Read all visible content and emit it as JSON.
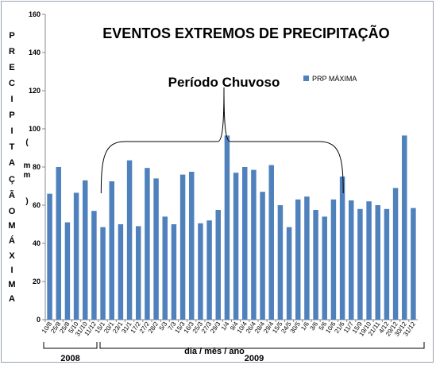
{
  "chart_data": {
    "type": "bar",
    "title": "EVENTOS EXTREMOS DE PRECIPITAÇÃO",
    "ylabel_chars": [
      "P",
      "R",
      "E",
      "C",
      "I",
      "P",
      "I",
      "T",
      "A",
      "Ç",
      "Ã",
      "O",
      "M",
      "Á",
      "X",
      "I",
      "M",
      "A"
    ],
    "ylabel_unit_chars": [
      "(",
      "m",
      "m",
      ")"
    ],
    "xlabel": "dia / mês / ano",
    "ylim": [
      0,
      160
    ],
    "yticks": [
      0,
      20,
      40,
      60,
      80,
      100,
      120,
      140,
      160
    ],
    "grid": false,
    "legend_position": "top-right",
    "series": [
      {
        "name": "PRP MÁXIMA",
        "color": "#4f81bd",
        "values": [
          66,
          80,
          51,
          66.5,
          73,
          57,
          48.5,
          72.5,
          50,
          83.5,
          49,
          79.5,
          74,
          54,
          50,
          76,
          77.5,
          50.5,
          52,
          57.5,
          96.5,
          77,
          80,
          78.5,
          67,
          81,
          60,
          48.5,
          63,
          64.5,
          57.5,
          54,
          63,
          75,
          62.5,
          58,
          62,
          60,
          58,
          69,
          96.5,
          58.5
        ]
      }
    ],
    "categories": [
      "10/8",
      "25/8",
      "25/8",
      "5/10",
      "31/10",
      "11/12",
      "15/1",
      "20/1",
      "23/1",
      "31/1",
      "17/2",
      "27/2",
      "28/2",
      "5/3",
      "7/3",
      "15/3",
      "16/3",
      "25/3",
      "27/3",
      "29/3",
      "1/4",
      "9/4",
      "10/4",
      "26/4",
      "28/4",
      "29/4",
      "15/5",
      "24/5",
      "30/5",
      "1/6",
      "3/6",
      "5/6",
      "10/6",
      "21/6",
      "11/7",
      "15/9",
      "19/10",
      "21/11",
      "4/12",
      "29/12",
      "30/12",
      "31/12"
    ],
    "annotation": "Período Chuvoso",
    "years": [
      "2008",
      "2009"
    ]
  }
}
